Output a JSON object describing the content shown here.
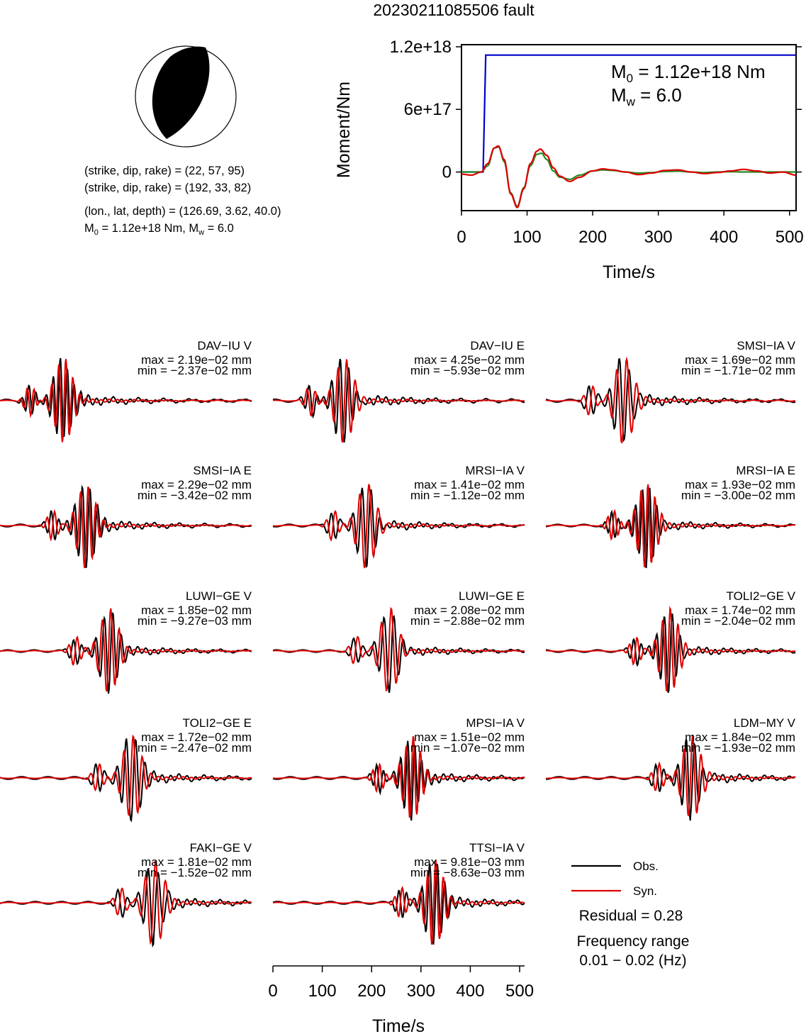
{
  "title": "20230211085506 fault",
  "info": {
    "line1": "(strike, dip, rake) = (22, 57, 95)",
    "line2": "(strike, dip, rake) = (192, 33, 82)",
    "line3": "(lon., lat, depth) = (126.69, 3.62, 40.0)",
    "m0_prefix": "M",
    "m0_sub": "0",
    "m0_mid": " = 1.12e+18 Nm, M",
    "mw_sub": "w",
    "mw_suffix": " = 6.0"
  },
  "colors": {
    "moment_rate_obs": "#228B22",
    "moment_rate_syn": "#DD0000",
    "cumulative_moment": "#0000CC",
    "obs": "#000000",
    "syn": "#DD0000",
    "beachball_fill": "#000000"
  },
  "stf_panel": {
    "ylabel": "Moment/Nm",
    "xlabel": "Time/s",
    "m0_text_prefix": "M",
    "m0_text_sub": "0",
    "m0_text_suffix": " = 1.12e+18 Nm",
    "mw_text_prefix": "M",
    "mw_text_sub": "w",
    "mw_text_suffix": " = 6.0"
  },
  "waveform_axis": {
    "xlabel": "Time/s",
    "ticks": [
      "0",
      "100",
      "200",
      "300",
      "400",
      "500"
    ]
  },
  "legend": {
    "obs": "Obs.",
    "syn": "Syn.",
    "residual": "Residual = 0.28",
    "freq_label": "Frequency range",
    "freq_value": "0.01 − 0.02 (Hz)"
  },
  "chart_data": [
    {
      "type": "line",
      "panel": "source time function",
      "xlabel": "Time/s",
      "ylabel": "Moment/Nm",
      "xlim": [
        0,
        510
      ],
      "ylim": [
        -3.7e+17,
        1.22e+18
      ],
      "x_ticks": [
        "0",
        "100",
        "200",
        "300",
        "400",
        "500"
      ],
      "y_ticks": [
        "0",
        "6e+17",
        "1.2e+18"
      ],
      "series": [
        {
          "kind": "cumulative moment",
          "x": [
            0,
            33,
            37,
            510
          ],
          "values": [
            0,
            0,
            1.12e+18,
            1.12e+18
          ]
        },
        {
          "kind": "moment rate (green)",
          "x": [
            0,
            30,
            40,
            50,
            57,
            65,
            75,
            85,
            95,
            105,
            115,
            122,
            130,
            140,
            150,
            165,
            180,
            200,
            215,
            230,
            250,
            270,
            290,
            310,
            330,
            350,
            370,
            390,
            410,
            430,
            450,
            470,
            490,
            510
          ],
          "values": [
            0,
            0,
            6e+16,
            2.3e+17,
            2.4e+17,
            1e+17,
            -2e+17,
            -3.3e+17,
            -1.5e+17,
            6e+16,
            1.7e+17,
            1.8e+17,
            1.2e+17,
            1e+16,
            -5e+16,
            -7e+16,
            -3e+16,
            1e+16,
            2e+16,
            1.5e+16,
            0,
            -1e+16,
            -5000000000000000.0,
            5000000000000000.0,
            8000000000000000.0,
            0,
            -5000000000000000.0,
            0,
            3000000000000000.0,
            0,
            0,
            0,
            0,
            0
          ]
        },
        {
          "kind": "moment rate (red)",
          "x": [
            0,
            15,
            30,
            40,
            50,
            56,
            65,
            75,
            85,
            95,
            105,
            115,
            120,
            130,
            140,
            150,
            165,
            180,
            200,
            215,
            230,
            250,
            270,
            290,
            310,
            330,
            350,
            370,
            390,
            410,
            430,
            450,
            470,
            490,
            510
          ],
          "values": [
            -2e+16,
            -3e+16,
            0,
            8e+16,
            2.3e+17,
            2.5e+17,
            1.2e+17,
            -2.1e+17,
            -3.4e+17,
            -1.6e+17,
            8e+16,
            2e+17,
            2.2e+17,
            1.6e+17,
            4e+16,
            -4e+16,
            -9e+16,
            -5e+16,
            1e+16,
            3e+16,
            2e+16,
            0,
            -2.5e+16,
            -1e+16,
            1.5e+16,
            2e+16,
            0,
            -1.5e+16,
            -5000000000000000.0,
            1e+16,
            2.5e+16,
            1e+16,
            -1e+16,
            0,
            -3e+16
          ]
        }
      ]
    },
    {
      "type": "line",
      "panel": "waveform comparison",
      "xlabel": "Time/s",
      "xlim": [
        0,
        510
      ],
      "series_names": [
        "Obs.",
        "Syn."
      ],
      "stations": [
        {
          "label": "DAV−IU V",
          "max": "max = 2.19e−02 mm",
          "min": "min = −2.37e−02 mm"
        },
        {
          "label": "DAV−IU E",
          "max": "max = 4.25e−02 mm",
          "min": "min = −5.93e−02 mm"
        },
        {
          "label": "SMSI−IA V",
          "max": "max = 1.69e−02 mm",
          "min": "min = −1.71e−02 mm"
        },
        {
          "label": "SMSI−IA E",
          "max": "max = 2.29e−02 mm",
          "min": "min = −3.42e−02 mm"
        },
        {
          "label": "MRSI−IA V",
          "max": "max = 1.41e−02 mm",
          "min": "min = −1.12e−02 mm"
        },
        {
          "label": "MRSI−IA E",
          "max": "max = 1.93e−02 mm",
          "min": "min = −3.00e−02 mm"
        },
        {
          "label": "LUWI−GE V",
          "max": "max = 1.85e−02 mm",
          "min": "min = −9.27e−03 mm"
        },
        {
          "label": "LUWI−GE E",
          "max": "max = 2.08e−02 mm",
          "min": "min = −2.88e−02 mm"
        },
        {
          "label": "TOLI2−GE V",
          "max": "max = 1.74e−02 mm",
          "min": "min = −2.04e−02 mm"
        },
        {
          "label": "TOLI2−GE E",
          "max": "max = 1.72e−02 mm",
          "min": "min = −2.47e−02 mm"
        },
        {
          "label": "MPSI−IA V",
          "max": "max = 1.51e−02 mm",
          "min": "min = −1.07e−02 mm"
        },
        {
          "label": "LDM−MY V",
          "max": "max = 1.84e−02 mm",
          "min": "min = −1.93e−02 mm"
        },
        {
          "label": "FAKI−GE V",
          "max": "max = 1.81e−02 mm",
          "min": "min = −1.52e−02 mm"
        },
        {
          "label": "TTSI−IA V",
          "max": "max = 9.81e−03 mm",
          "min": "min = −8.63e−03 mm"
        }
      ]
    }
  ]
}
